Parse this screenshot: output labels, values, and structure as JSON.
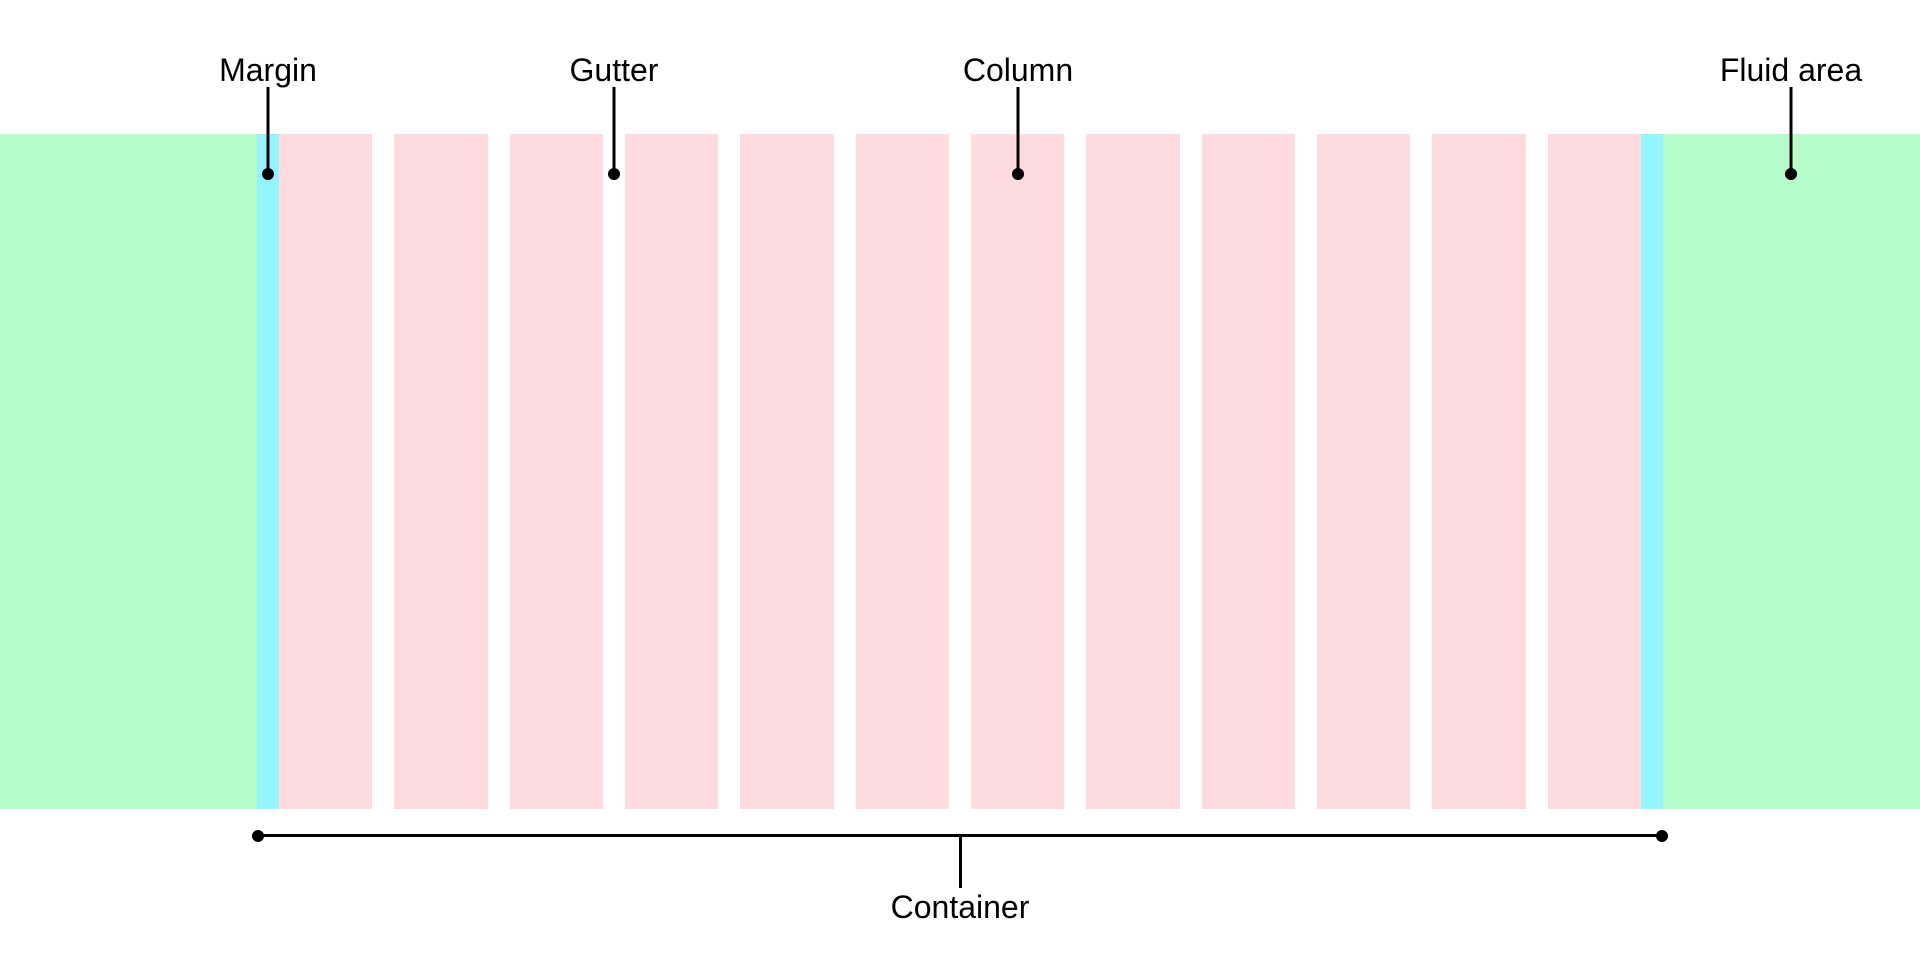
{
  "diagram": {
    "type": "grid-layout-anatomy",
    "callouts": [
      {
        "id": "margin",
        "label": "Margin"
      },
      {
        "id": "gutter",
        "label": "Gutter"
      },
      {
        "id": "column",
        "label": "Column"
      },
      {
        "id": "fluid_area",
        "label": "Fluid area"
      }
    ],
    "container": {
      "label": "Container"
    },
    "grid": {
      "column_count": 12
    },
    "colors": {
      "fluid_area": "#B6FCCB",
      "margin": "#94F4FE",
      "column": "#FFDADE",
      "annotation": "#000000"
    }
  }
}
